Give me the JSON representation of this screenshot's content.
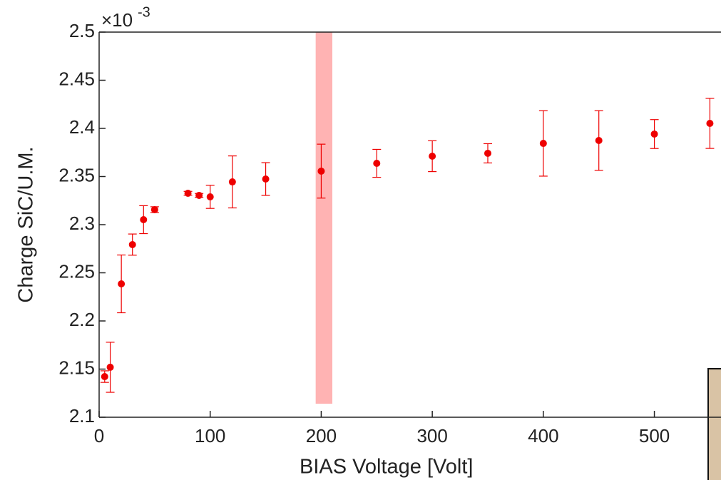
{
  "chart_data": {
    "type": "scatter",
    "x_label": "BIAS Voltage [Volt]",
    "y_label": "Charge SiC/U.M.",
    "y_multiplier": "×10",
    "y_multiplier_exponent": "-3",
    "x": [
      5,
      10,
      20,
      30,
      40,
      50,
      80,
      90,
      100,
      120,
      150,
      200,
      250,
      300,
      350,
      400,
      450,
      500,
      550
    ],
    "values": [
      2.1422,
      2.1519,
      2.2385,
      2.2793,
      2.3052,
      2.3156,
      2.3326,
      2.3304,
      2.3289,
      2.3444,
      2.3474,
      2.3556,
      2.3637,
      2.3711,
      2.3741,
      2.3844,
      2.3874,
      2.3941,
      2.4052
    ],
    "errors": [
      0.006,
      0.026,
      0.03,
      0.011,
      0.0145,
      0.003,
      0.002,
      0.002,
      0.012,
      0.027,
      0.017,
      0.028,
      0.0145,
      0.016,
      0.01,
      0.034,
      0.031,
      0.015,
      0.026
    ],
    "color": "#ee0000",
    "highlight": {
      "x": [
        195,
        210
      ],
      "y": [
        2.114,
        2.5
      ],
      "color": "#ffb3b3"
    },
    "xlim": [
      0,
      560
    ],
    "ylim": [
      2.1,
      2.5
    ],
    "xticks": [
      0,
      100,
      200,
      300,
      400,
      500
    ],
    "yticks": [
      2.1,
      2.15,
      2.2,
      2.25,
      2.3,
      2.35,
      2.4,
      2.45,
      2.5
    ]
  }
}
